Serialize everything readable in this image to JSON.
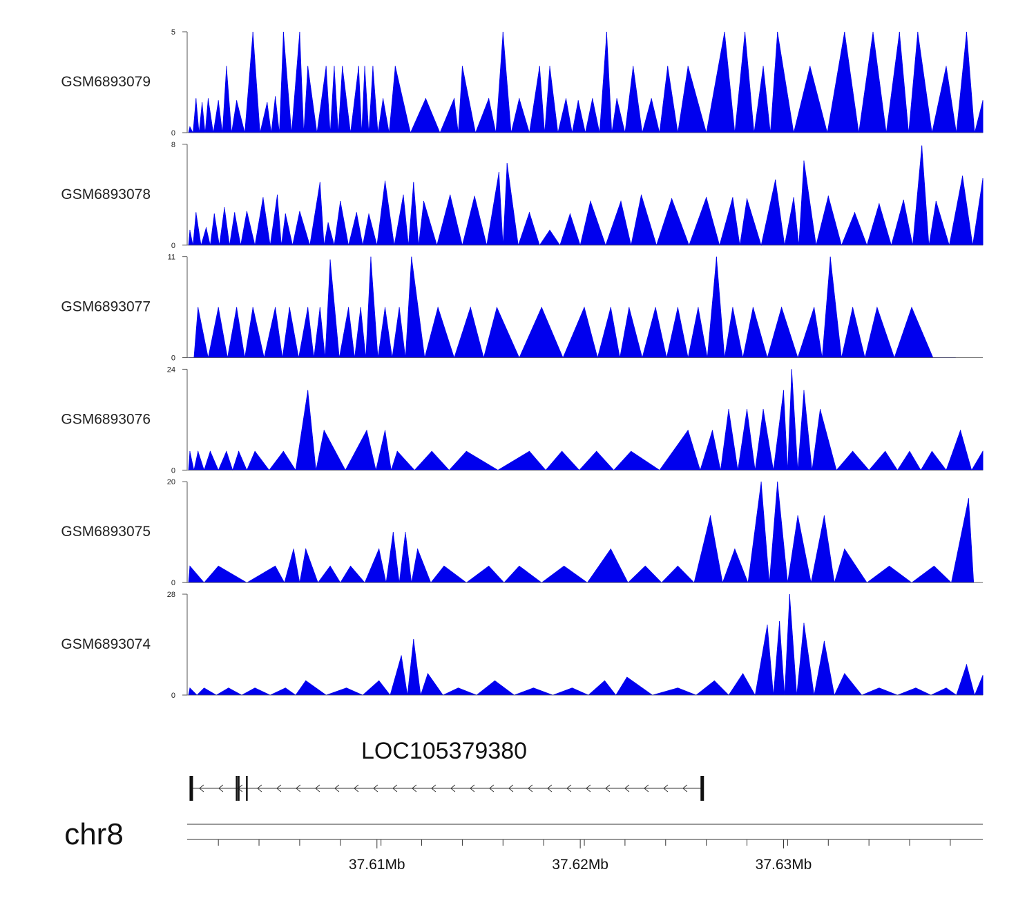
{
  "colors": {
    "signal": "#0000ee",
    "axis": "#555555",
    "text": "#111111"
  },
  "chart_data": {
    "type": "area",
    "chromosome": "chr8",
    "x_range_mb": [
      37.6007,
      37.6398
    ],
    "x_ticks_mb": [
      37.61,
      37.62,
      37.63
    ],
    "x_tick_labels": [
      "37.61Mb",
      "37.62Mb",
      "37.63Mb"
    ],
    "x_minor_ticks_mb": [
      37.6022,
      37.6042,
      37.6062,
      37.6082,
      37.6102,
      37.6122,
      37.6142,
      37.6162,
      37.6182,
      37.6202,
      37.6222,
      37.6242,
      37.6262,
      37.6282,
      37.6302,
      37.6322,
      37.6342,
      37.6362,
      37.6382
    ],
    "tracks": [
      {
        "name": "GSM6893079",
        "ymax": 5,
        "ymin_label": "0",
        "ymax_label": "5",
        "peaks": [
          [
            37.6008,
            0.3
          ],
          [
            37.6011,
            1.7
          ],
          [
            37.6014,
            1.5
          ],
          [
            37.6017,
            1.7
          ],
          [
            37.6022,
            1.6
          ],
          [
            37.6026,
            3.3
          ],
          [
            37.6031,
            1.6
          ],
          [
            37.6039,
            5
          ],
          [
            37.6046,
            1.5
          ],
          [
            37.605,
            1.8
          ],
          [
            37.6054,
            5
          ],
          [
            37.6062,
            5
          ],
          [
            37.6066,
            3.3
          ],
          [
            37.6075,
            3.3
          ],
          [
            37.6079,
            3.3
          ],
          [
            37.6083,
            3.3
          ],
          [
            37.6091,
            3.3
          ],
          [
            37.6094,
            3.3
          ],
          [
            37.6098,
            3.3
          ],
          [
            37.6103,
            1.7
          ],
          [
            37.6109,
            3.3
          ],
          [
            37.6124,
            1.7
          ],
          [
            37.6138,
            1.7
          ],
          [
            37.6142,
            3.3
          ],
          [
            37.6155,
            1.7
          ],
          [
            37.6162,
            5
          ],
          [
            37.617,
            1.7
          ],
          [
            37.618,
            3.3
          ],
          [
            37.6185,
            3.3
          ],
          [
            37.6193,
            1.7
          ],
          [
            37.6199,
            1.6
          ],
          [
            37.6206,
            1.7
          ],
          [
            37.6213,
            5
          ],
          [
            37.6218,
            1.7
          ],
          [
            37.6226,
            3.3
          ],
          [
            37.6235,
            1.7
          ],
          [
            37.6243,
            3.3
          ],
          [
            37.6253,
            3.3
          ],
          [
            37.6271,
            5
          ],
          [
            37.6281,
            5
          ],
          [
            37.629,
            3.3
          ],
          [
            37.6297,
            5
          ],
          [
            37.6313,
            3.3
          ],
          [
            37.633,
            5
          ],
          [
            37.6344,
            5
          ],
          [
            37.6357,
            5
          ],
          [
            37.6366,
            5
          ],
          [
            37.638,
            3.3
          ],
          [
            37.639,
            5
          ],
          [
            37.6398,
            1.6
          ]
        ]
      },
      {
        "name": "GSM6893078",
        "ymax": 8,
        "ymin_label": "0",
        "ymax_label": "8",
        "peaks": [
          [
            37.6008,
            1.2
          ],
          [
            37.6011,
            2.6
          ],
          [
            37.6016,
            1.4
          ],
          [
            37.602,
            2.5
          ],
          [
            37.6025,
            3
          ],
          [
            37.603,
            2.6
          ],
          [
            37.6036,
            2.7
          ],
          [
            37.6044,
            3.8
          ],
          [
            37.6051,
            4
          ],
          [
            37.6055,
            2.5
          ],
          [
            37.6062,
            2.7
          ],
          [
            37.6072,
            5
          ],
          [
            37.6076,
            1.8
          ],
          [
            37.6082,
            3.5
          ],
          [
            37.609,
            2.6
          ],
          [
            37.6096,
            2.5
          ],
          [
            37.6104,
            5.1
          ],
          [
            37.6113,
            4
          ],
          [
            37.6118,
            5
          ],
          [
            37.6123,
            3.5
          ],
          [
            37.6136,
            4
          ],
          [
            37.6148,
            3.9
          ],
          [
            37.616,
            5.8
          ],
          [
            37.6164,
            6.5
          ],
          [
            37.6175,
            2.6
          ],
          [
            37.6185,
            1.2
          ],
          [
            37.6195,
            2.5
          ],
          [
            37.6205,
            3.5
          ],
          [
            37.622,
            3.5
          ],
          [
            37.623,
            4
          ],
          [
            37.6245,
            3.7
          ],
          [
            37.6262,
            3.8
          ],
          [
            37.6275,
            3.8
          ],
          [
            37.6282,
            3.7
          ],
          [
            37.6296,
            5.2
          ],
          [
            37.6305,
            3.8
          ],
          [
            37.631,
            6.7
          ],
          [
            37.6322,
            3.9
          ],
          [
            37.6335,
            2.6
          ],
          [
            37.6347,
            3.3
          ],
          [
            37.6359,
            3.6
          ],
          [
            37.6368,
            7.9
          ],
          [
            37.6375,
            3.5
          ],
          [
            37.6388,
            5.5
          ],
          [
            37.6398,
            5.3
          ]
        ]
      },
      {
        "name": "GSM6893077",
        "ymax": 11,
        "ymin_label": "0",
        "ymax_label": "11",
        "peaks": [
          [
            37.6008,
            0
          ],
          [
            37.6012,
            5.5
          ],
          [
            37.6022,
            5.5
          ],
          [
            37.6031,
            5.5
          ],
          [
            37.6039,
            5.5
          ],
          [
            37.605,
            5.5
          ],
          [
            37.6057,
            5.5
          ],
          [
            37.6066,
            5.5
          ],
          [
            37.6072,
            5.5
          ],
          [
            37.6077,
            10.7
          ],
          [
            37.6086,
            5.5
          ],
          [
            37.6092,
            5.5
          ],
          [
            37.6097,
            11
          ],
          [
            37.6104,
            5.5
          ],
          [
            37.6111,
            5.5
          ],
          [
            37.6117,
            11
          ],
          [
            37.613,
            5.5
          ],
          [
            37.6146,
            5.5
          ],
          [
            37.6159,
            5.5
          ],
          [
            37.6181,
            5.5
          ],
          [
            37.6202,
            5.5
          ],
          [
            37.6215,
            5.5
          ],
          [
            37.6224,
            5.5
          ],
          [
            37.6237,
            5.5
          ],
          [
            37.6248,
            5.5
          ],
          [
            37.6258,
            5.5
          ],
          [
            37.6267,
            11
          ],
          [
            37.6275,
            5.5
          ],
          [
            37.6285,
            5.5
          ],
          [
            37.6299,
            5.5
          ],
          [
            37.6315,
            5.5
          ],
          [
            37.6323,
            11
          ],
          [
            37.6334,
            5.5
          ],
          [
            37.6346,
            5.5
          ],
          [
            37.6363,
            5.5
          ],
          [
            37.6384,
            0
          ]
        ]
      },
      {
        "name": "GSM6893076",
        "ymax": 24,
        "ymin_label": "0",
        "ymax_label": "24",
        "peaks": [
          [
            37.6008,
            4.5
          ],
          [
            37.6012,
            4.5
          ],
          [
            37.6018,
            4.5
          ],
          [
            37.6026,
            4.5
          ],
          [
            37.6032,
            4.5
          ],
          [
            37.604,
            4.5
          ],
          [
            37.6054,
            4.5
          ],
          [
            37.6066,
            19
          ],
          [
            37.6074,
            9.5
          ],
          [
            37.6095,
            9.5
          ],
          [
            37.6104,
            9.5
          ],
          [
            37.611,
            4.5
          ],
          [
            37.6127,
            4.5
          ],
          [
            37.6144,
            4.5
          ],
          [
            37.6175,
            4.5
          ],
          [
            37.6191,
            4.5
          ],
          [
            37.6208,
            4.5
          ],
          [
            37.6225,
            4.5
          ],
          [
            37.6253,
            9.5
          ],
          [
            37.6265,
            9.5
          ],
          [
            37.6273,
            14.5
          ],
          [
            37.6282,
            14.5
          ],
          [
            37.629,
            14.5
          ],
          [
            37.63,
            19
          ],
          [
            37.6304,
            24
          ],
          [
            37.631,
            19
          ],
          [
            37.6318,
            14.5
          ],
          [
            37.6334,
            4.5
          ],
          [
            37.635,
            4.5
          ],
          [
            37.6362,
            4.5
          ],
          [
            37.6373,
            4.5
          ],
          [
            37.6387,
            9.5
          ],
          [
            37.6398,
            4.5
          ]
        ]
      },
      {
        "name": "GSM6893075",
        "ymax": 20,
        "ymin_label": "0",
        "ymax_label": "20",
        "peaks": [
          [
            37.6008,
            3.3
          ],
          [
            37.6022,
            3.3
          ],
          [
            37.605,
            3.3
          ],
          [
            37.6059,
            6.7
          ],
          [
            37.6065,
            6.7
          ],
          [
            37.6077,
            3.3
          ],
          [
            37.6087,
            3.3
          ],
          [
            37.6101,
            6.7
          ],
          [
            37.6108,
            10
          ],
          [
            37.6114,
            10
          ],
          [
            37.612,
            6.7
          ],
          [
            37.6133,
            3.3
          ],
          [
            37.6155,
            3.3
          ],
          [
            37.617,
            3.3
          ],
          [
            37.6192,
            3.3
          ],
          [
            37.6215,
            6.7
          ],
          [
            37.6232,
            3.3
          ],
          [
            37.6248,
            3.3
          ],
          [
            37.6264,
            13.3
          ],
          [
            37.6276,
            6.7
          ],
          [
            37.6289,
            20
          ],
          [
            37.6297,
            20
          ],
          [
            37.6307,
            13.3
          ],
          [
            37.632,
            13.3
          ],
          [
            37.633,
            6.7
          ],
          [
            37.6352,
            3.3
          ],
          [
            37.6374,
            3.3
          ],
          [
            37.6391,
            16.7
          ],
          [
            37.6396,
            0
          ]
        ]
      },
      {
        "name": "GSM6893074",
        "ymax": 28,
        "ymin_label": "0",
        "ymax_label": "28",
        "peaks": [
          [
            37.6008,
            2
          ],
          [
            37.6015,
            2
          ],
          [
            37.6027,
            2
          ],
          [
            37.604,
            2
          ],
          [
            37.6055,
            2
          ],
          [
            37.6065,
            4
          ],
          [
            37.6085,
            2
          ],
          [
            37.6101,
            4
          ],
          [
            37.6112,
            11
          ],
          [
            37.6118,
            15.5
          ],
          [
            37.6125,
            6
          ],
          [
            37.614,
            2
          ],
          [
            37.6158,
            4
          ],
          [
            37.6177,
            2
          ],
          [
            37.6196,
            2
          ],
          [
            37.6212,
            4
          ],
          [
            37.6223,
            5
          ],
          [
            37.6248,
            2
          ],
          [
            37.6266,
            4
          ],
          [
            37.628,
            6
          ],
          [
            37.6292,
            19.5
          ],
          [
            37.6298,
            20.5
          ],
          [
            37.6303,
            28
          ],
          [
            37.631,
            20
          ],
          [
            37.632,
            15
          ],
          [
            37.633,
            6
          ],
          [
            37.6347,
            2
          ],
          [
            37.6365,
            2
          ],
          [
            37.638,
            2
          ],
          [
            37.639,
            8.5
          ],
          [
            37.6398,
            5.5
          ]
        ]
      }
    ],
    "gene": {
      "name": "LOC105379380",
      "strand": "-",
      "start_mb": 37.6008,
      "end_mb": 37.626,
      "exons_mb": [
        37.6008,
        37.6031,
        37.6032,
        37.6036
      ]
    }
  }
}
